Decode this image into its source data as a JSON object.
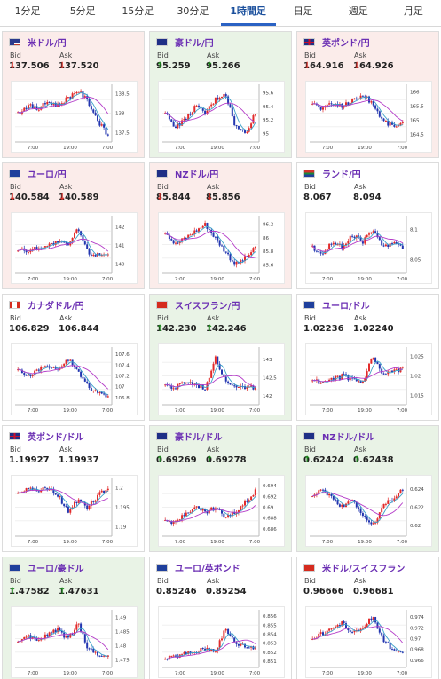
{
  "tabs": [
    {
      "label": "1分足",
      "active": false
    },
    {
      "label": "5分足",
      "active": false
    },
    {
      "label": "15分足",
      "active": false
    },
    {
      "label": "30分足",
      "active": false
    },
    {
      "label": "1時間足",
      "active": true
    },
    {
      "label": "日足",
      "active": false
    },
    {
      "label": "週足",
      "active": false
    },
    {
      "label": "月足",
      "active": false
    }
  ],
  "labels": {
    "bid": "Bid",
    "ask": "Ask"
  },
  "colors": {
    "up_arrow": "#1e8a1e",
    "down_arrow": "#e0302a",
    "candle_up": "#e22b2b",
    "candle_down": "#2336b0",
    "ma_short": "#3aa0c8",
    "ma_long": "#b43cc8"
  },
  "pairs": [
    {
      "name": "米ドル/円",
      "flag": "us",
      "bid": "137.506",
      "ask": "137.520",
      "dir": "down",
      "xticks": [
        "7:00",
        "19:00",
        "7:00"
      ],
      "yticks": [
        "138.5",
        "138",
        "137.5"
      ],
      "ymin": 137.3,
      "ymax": 138.7,
      "trend": [
        138.0,
        138.2,
        138.1,
        138.3,
        138.2,
        138.4,
        138.6,
        138.3,
        137.8,
        137.4
      ]
    },
    {
      "name": "豪ドル/円",
      "flag": "au",
      "bid": "95.259",
      "ask": "95.266",
      "dir": "up",
      "xticks": [
        "7:00",
        "19:00",
        "7:00"
      ],
      "yticks": [
        "95.6",
        "95.4",
        "95.2",
        "95"
      ],
      "ymin": 94.9,
      "ymax": 95.7,
      "trend": [
        95.3,
        95.1,
        95.2,
        95.4,
        95.3,
        95.5,
        95.6,
        95.1,
        95.0,
        95.3
      ]
    },
    {
      "name": "英ポンド/円",
      "flag": "uk",
      "bid": "164.916",
      "ask": "164.926",
      "dir": "down",
      "xticks": [
        "7:00",
        "19:00",
        "7:00"
      ],
      "yticks": [
        "166",
        "165.5",
        "165",
        "164.5"
      ],
      "ymin": 164.3,
      "ymax": 166.2,
      "trend": [
        165.6,
        165.4,
        165.6,
        165.5,
        165.7,
        165.9,
        165.6,
        165.0,
        164.8,
        164.9
      ]
    },
    {
      "name": "ユーロ/円",
      "flag": "eu",
      "bid": "140.584",
      "ask": "140.589",
      "dir": "down",
      "xticks": [
        "7:00",
        "19:00",
        "7:00"
      ],
      "yticks": [
        "142",
        "141",
        "140"
      ],
      "ymin": 139.6,
      "ymax": 142.5,
      "trend": [
        140.8,
        140.7,
        140.9,
        141.0,
        141.2,
        141.0,
        141.9,
        140.6,
        140.5,
        140.6
      ]
    },
    {
      "name": "NZドル/円",
      "flag": "nz",
      "bid": "85.844",
      "ask": "85.856",
      "dir": "down",
      "xticks": [
        "7:00",
        "19:00",
        "7:00"
      ],
      "yticks": [
        "86.2",
        "86",
        "85.8",
        "85.6"
      ],
      "ymin": 85.5,
      "ymax": 86.3,
      "trend": [
        86.1,
        85.9,
        86.0,
        86.1,
        86.2,
        86.0,
        85.8,
        85.6,
        85.7,
        85.85
      ]
    },
    {
      "name": "ランド/円",
      "flag": "za",
      "bid": "8.067",
      "ask": "8.094",
      "dir": "flat",
      "xticks": [
        "7:00",
        "19:00",
        "7:00"
      ],
      "yticks": [
        "8.1",
        "8.05"
      ],
      "ymin": 8.03,
      "ymax": 8.12,
      "trend": [
        8.07,
        8.06,
        8.08,
        8.07,
        8.09,
        8.08,
        8.1,
        8.07,
        8.08,
        8.07
      ]
    },
    {
      "name": "カナダドル/円",
      "flag": "ca",
      "bid": "106.829",
      "ask": "106.844",
      "dir": "flat",
      "xticks": [
        "7:00",
        "19:00",
        "7:00"
      ],
      "yticks": [
        "107.6",
        "107.4",
        "107.2",
        "107",
        "106.8"
      ],
      "ymin": 106.7,
      "ymax": 107.7,
      "trend": [
        107.3,
        107.2,
        107.3,
        107.4,
        107.3,
        107.5,
        107.3,
        107.0,
        106.9,
        106.8
      ]
    },
    {
      "name": "スイスフラン/円",
      "flag": "ch",
      "bid": "142.230",
      "ask": "142.246",
      "dir": "up",
      "xticks": [
        "7:00",
        "19:00",
        "7:00"
      ],
      "yticks": [
        "143",
        "142.5",
        "142"
      ],
      "ymin": 141.8,
      "ymax": 143.3,
      "trend": [
        142.3,
        142.2,
        142.4,
        142.3,
        142.2,
        143.1,
        142.4,
        142.3,
        142.2,
        142.25
      ]
    },
    {
      "name": "ユーロ/ドル",
      "flag": "eu",
      "bid": "1.02236",
      "ask": "1.02240",
      "dir": "flat",
      "xticks": [
        "7:00",
        "19:00",
        "7:00"
      ],
      "yticks": [
        "1.025",
        "1.02",
        "1.015"
      ],
      "ymin": 1.013,
      "ymax": 1.027,
      "trend": [
        1.019,
        1.018,
        1.019,
        1.02,
        1.019,
        1.018,
        1.025,
        1.02,
        1.021,
        1.022
      ]
    },
    {
      "name": "英ポンド/ドル",
      "flag": "uk",
      "bid": "1.19927",
      "ask": "1.19937",
      "dir": "flat",
      "xticks": [
        "7:00",
        "19:00",
        "7:00"
      ],
      "yticks": [
        "1.2",
        "1.195",
        "1.19"
      ],
      "ymin": 1.188,
      "ymax": 1.202,
      "trend": [
        1.199,
        1.2,
        1.199,
        1.2,
        1.198,
        1.194,
        1.197,
        1.195,
        1.198,
        1.2
      ]
    },
    {
      "name": "豪ドル/ドル",
      "flag": "au",
      "bid": "0.69269",
      "ask": "0.69278",
      "dir": "up",
      "xticks": [
        "7:00",
        "19:00",
        "7:00"
      ],
      "yticks": [
        "0.694",
        "0.692",
        "0.69",
        "0.688",
        "0.686"
      ],
      "ymin": 0.685,
      "ymax": 0.695,
      "trend": [
        0.688,
        0.687,
        0.689,
        0.69,
        0.689,
        0.69,
        0.688,
        0.689,
        0.691,
        0.693
      ]
    },
    {
      "name": "NZドル/ドル",
      "flag": "nz",
      "bid": "0.62424",
      "ask": "0.62438",
      "dir": "up",
      "xticks": [
        "7:00",
        "19:00",
        "7:00"
      ],
      "yticks": [
        "0.624",
        "0.622",
        "0.62"
      ],
      "ymin": 0.619,
      "ymax": 0.625,
      "trend": [
        0.623,
        0.624,
        0.623,
        0.622,
        0.623,
        0.621,
        0.62,
        0.622,
        0.623,
        0.624
      ]
    },
    {
      "name": "ユーロ/豪ドル",
      "flag": "eu",
      "bid": "1.47582",
      "ask": "1.47631",
      "dir": "up",
      "xticks": [
        "7:00",
        "19:00",
        "7:00"
      ],
      "yticks": [
        "1.49",
        "1.485",
        "1.48",
        "1.475"
      ],
      "ymin": 1.473,
      "ymax": 1.492,
      "trend": [
        1.481,
        1.483,
        1.482,
        1.484,
        1.486,
        1.482,
        1.488,
        1.479,
        1.477,
        1.476
      ]
    },
    {
      "name": "ユーロ/英ポンド",
      "flag": "eu",
      "bid": "0.85246",
      "ask": "0.85254",
      "dir": "flat",
      "xticks": [
        "7:00",
        "19:00",
        "7:00"
      ],
      "yticks": [
        "0.856",
        "0.855",
        "0.854",
        "0.853",
        "0.852",
        "0.851"
      ],
      "ymin": 0.8505,
      "ymax": 0.8565,
      "trend": [
        0.8512,
        0.8515,
        0.8518,
        0.852,
        0.8524,
        0.8522,
        0.8545,
        0.853,
        0.8526,
        0.8525
      ]
    },
    {
      "name": "米ドル/スイスフラン",
      "flag": "ch",
      "bid": "0.96666",
      "ask": "0.96681",
      "dir": "flat",
      "xticks": [
        "7:00",
        "19:00",
        "7:00"
      ],
      "yticks": [
        "0.974",
        "0.972",
        "0.97",
        "0.968",
        "0.966"
      ],
      "ymin": 0.965,
      "ymax": 0.975,
      "trend": [
        0.97,
        0.971,
        0.972,
        0.973,
        0.971,
        0.972,
        0.974,
        0.97,
        0.968,
        0.967
      ]
    }
  ]
}
